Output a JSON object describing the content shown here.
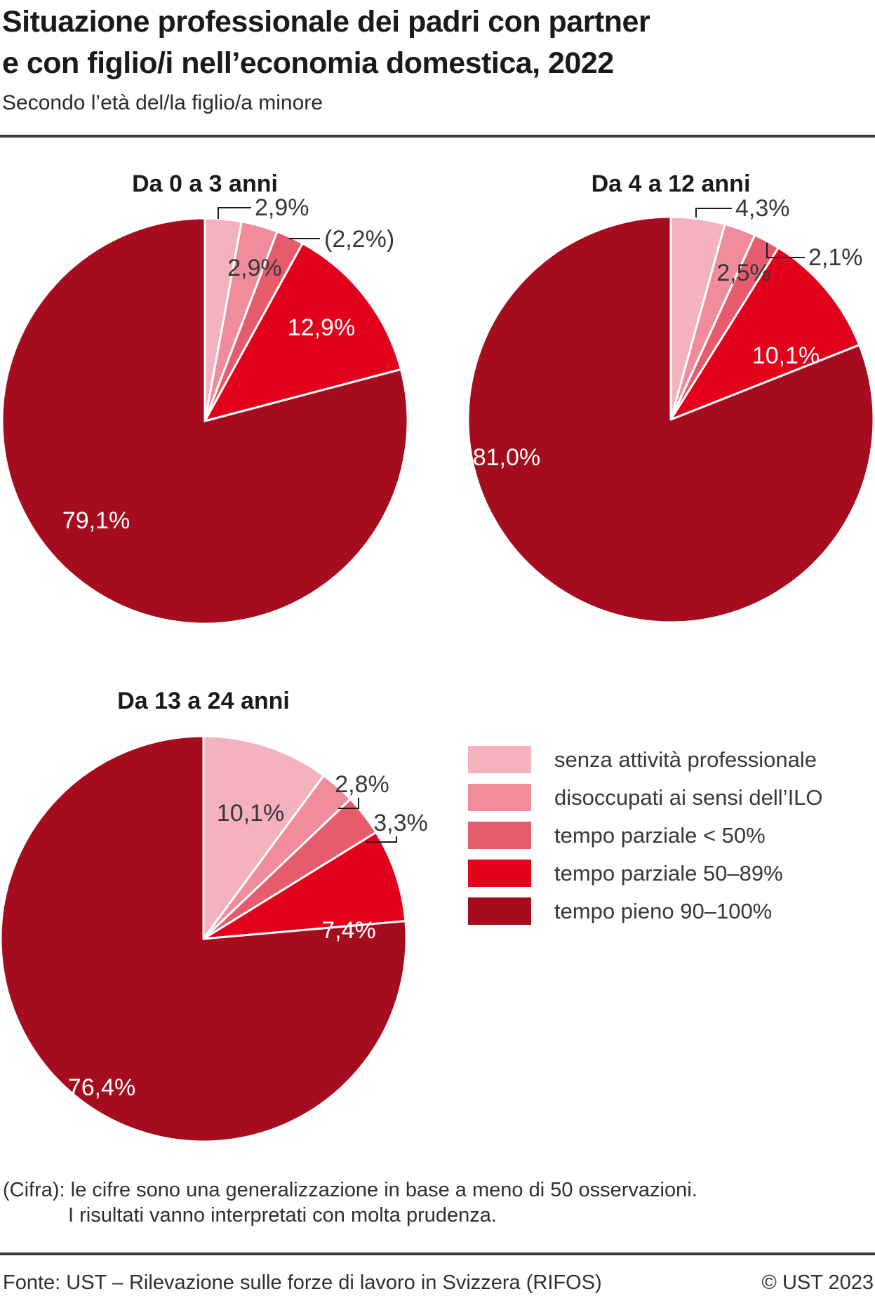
{
  "header": {
    "title_line1": "Situazione professionale dei padri con partner",
    "title_line2": "e con figlio/i nell’economia domestica, 2022",
    "subtitle": "Secondo l’età del/la figlio/a minore"
  },
  "legend": {
    "position": "bottom-right",
    "items": [
      {
        "label": "senza attività professionale",
        "color": "#f4b1be"
      },
      {
        "label": "disoccupati ai sensi dell’ILO",
        "color": "#f08c9b"
      },
      {
        "label": "tempo parziale < 50%",
        "color": "#e65c6d"
      },
      {
        "label": "tempo parziale 50–89%",
        "color": "#e2001a"
      },
      {
        "label": "tempo pieno 90–100%",
        "color": "#a50d1e"
      }
    ]
  },
  "chart_data": [
    {
      "type": "pie",
      "title": "Da 0 a 3 anni",
      "categories": [
        "senza attività professionale",
        "disoccupati ai sensi dell’ILO",
        "tempo parziale < 50%",
        "tempo parziale 50–89%",
        "tempo pieno 90–100%"
      ],
      "values": [
        2.9,
        2.9,
        2.2,
        12.9,
        79.1
      ],
      "value_labels": [
        "2,9%",
        "2,9%",
        "(2,2%)",
        "12,9%",
        "79,1%"
      ],
      "start_angle_deg": 0,
      "direction": "clockwise"
    },
    {
      "type": "pie",
      "title": "Da 4 a 12 anni",
      "categories": [
        "senza attività professionale",
        "disoccupati ai sensi dell’ILO",
        "tempo parziale < 50%",
        "tempo parziale 50–89%",
        "tempo pieno 90–100%"
      ],
      "values": [
        4.3,
        2.5,
        2.1,
        10.1,
        81.0
      ],
      "value_labels": [
        "4,3%",
        "2,5%",
        "2,1%",
        "10,1%",
        "81,0%"
      ],
      "start_angle_deg": 0,
      "direction": "clockwise"
    },
    {
      "type": "pie",
      "title": "Da 13 a 24 anni",
      "categories": [
        "senza attività professionale",
        "disoccupati ai sensi dell’ILO",
        "tempo parziale < 50%",
        "tempo parziale 50–89%",
        "tempo pieno 90–100%"
      ],
      "values": [
        10.1,
        2.8,
        3.3,
        7.4,
        76.4
      ],
      "value_labels": [
        "10,1%",
        "2,8%",
        "3,3%",
        "7,4%",
        "76,4%"
      ],
      "start_angle_deg": 0,
      "direction": "clockwise"
    }
  ],
  "footnote": {
    "line1": "(Cifra): le cifre sono una generalizzazione in base a meno di 50 osservazioni.",
    "line2": "I risultati vanno interpretati con molta prudenza."
  },
  "footer": {
    "source": "Fonte: UST – Rilevazione sulle forze di lavoro in Svizzera (RIFOS)",
    "copyright": "© UST 2023"
  }
}
